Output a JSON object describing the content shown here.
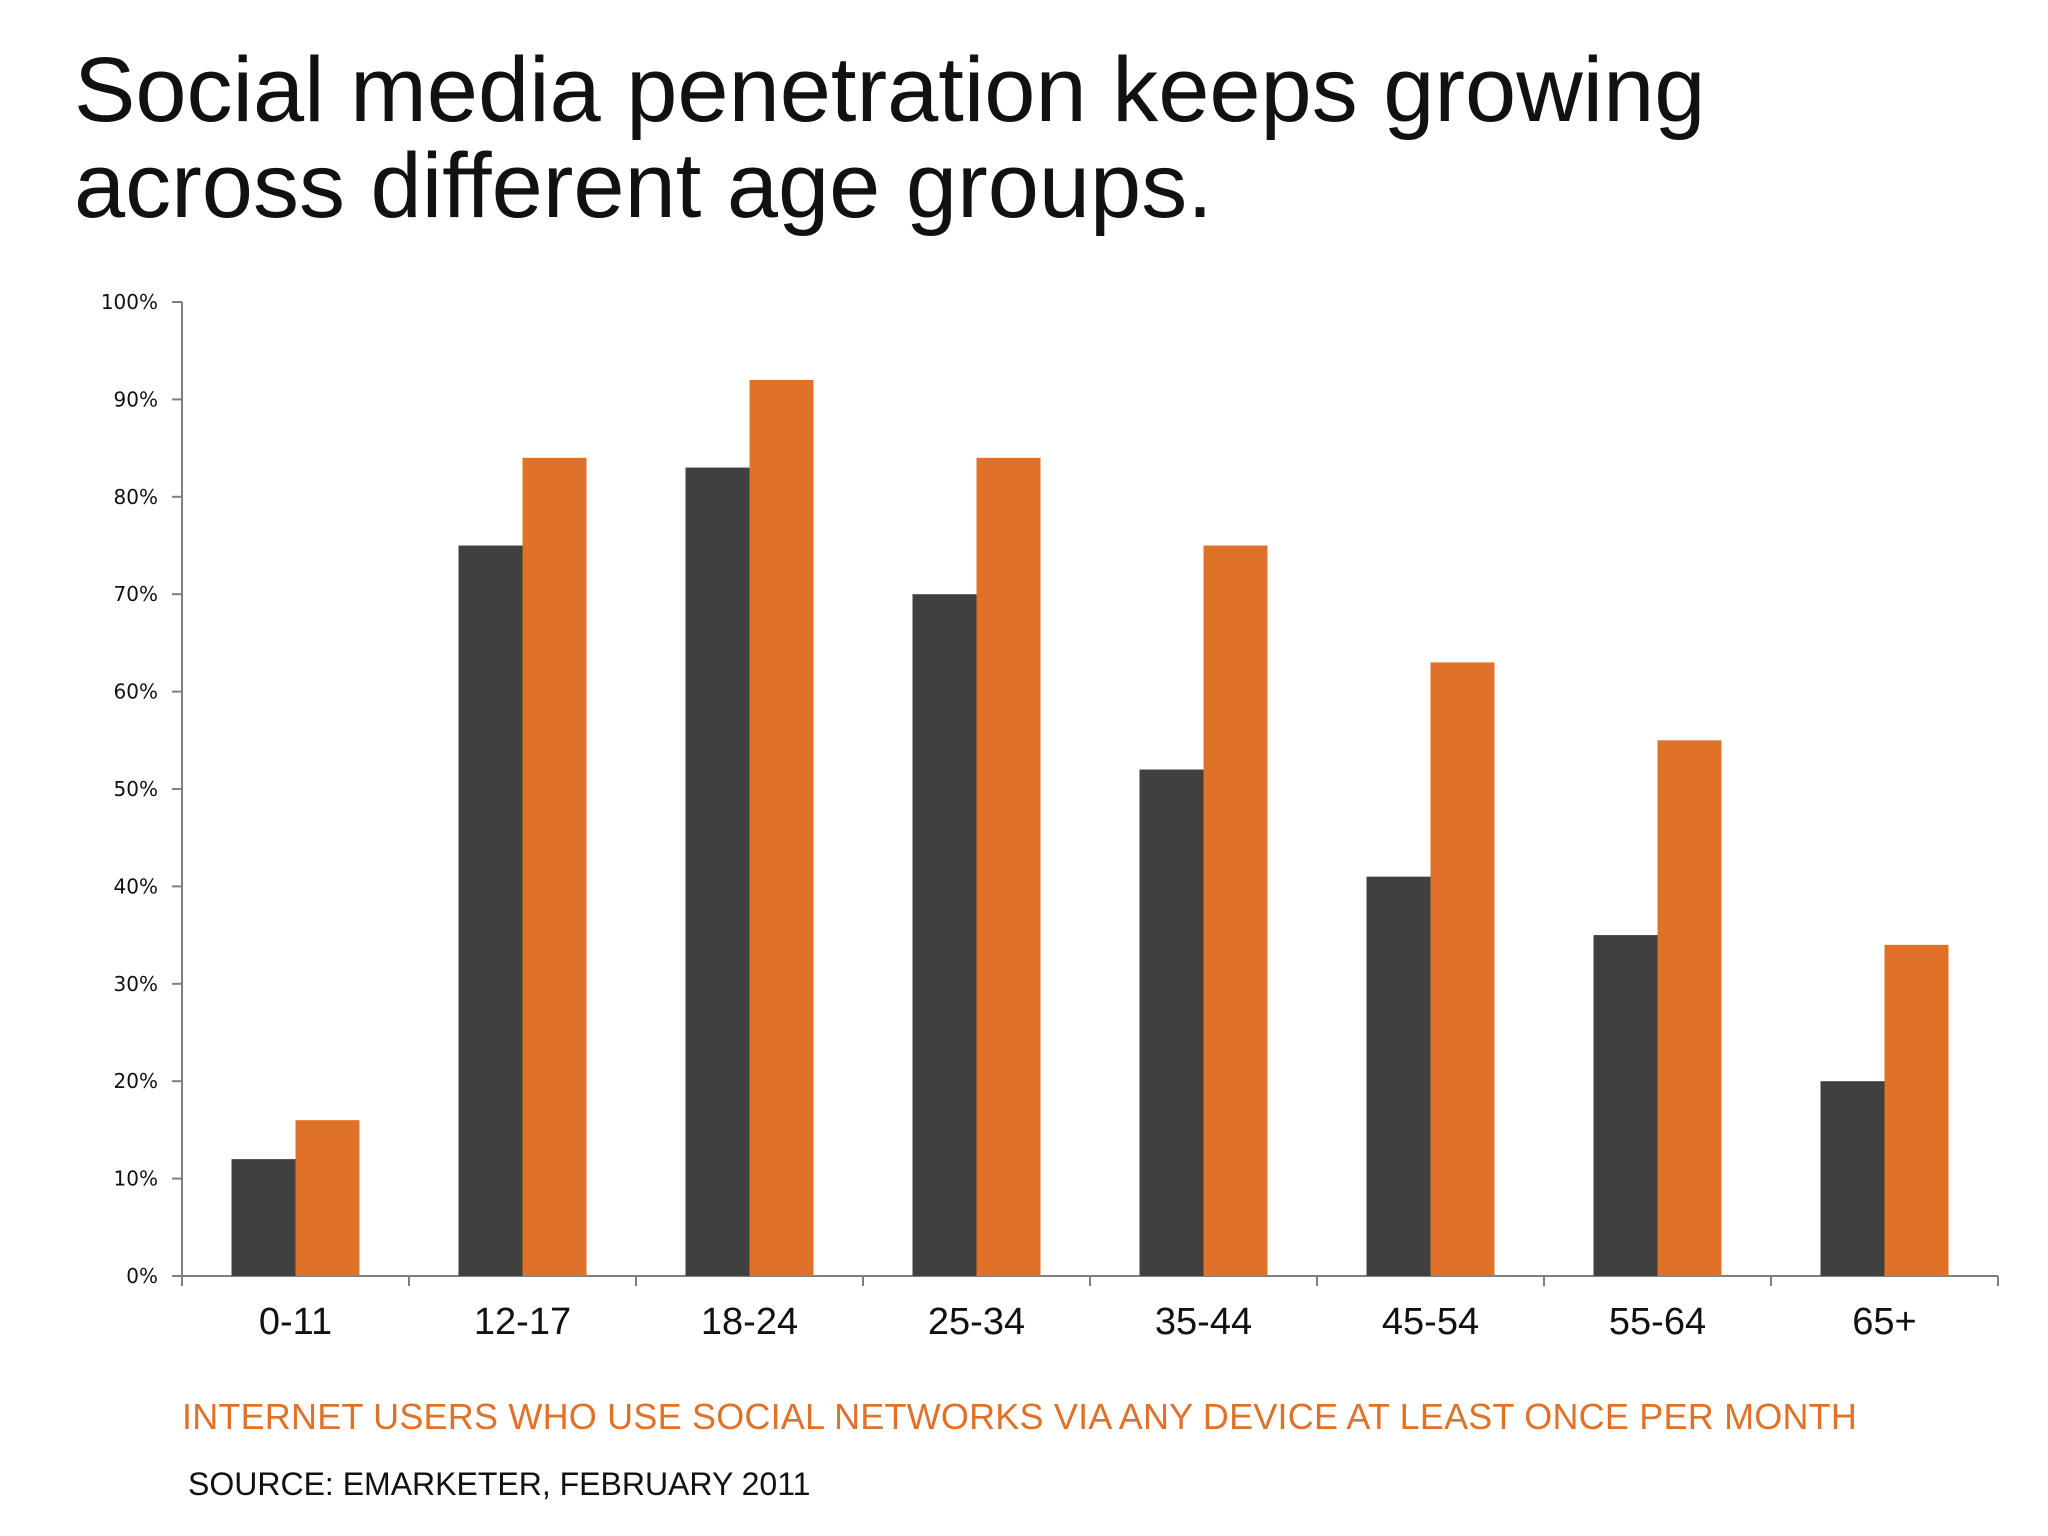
{
  "title": {
    "line1": "Social media penetration keeps growing",
    "line2": "across different age groups."
  },
  "caption": "INTERNET USERS WHO USE SOCIAL NETWORKS VIA ANY DEVICE AT LEAST ONCE PER MONTH",
  "source": "SOURCE: EMARKETER, FEBRUARY 2011",
  "colors": {
    "series1": "#404040",
    "series2": "#e07128",
    "axis": "#7f7f7f",
    "text": "#111111"
  },
  "chart_data": {
    "type": "bar",
    "categories": [
      "0-11",
      "12-17",
      "18-24",
      "25-34",
      "35-44",
      "45-54",
      "55-64",
      "65+"
    ],
    "series": [
      {
        "values": [
          12,
          75,
          83,
          70,
          52,
          41,
          35,
          20
        ]
      },
      {
        "values": [
          16,
          84,
          92,
          84,
          75,
          63,
          55,
          34
        ]
      }
    ],
    "yticks": [
      "0%",
      "10%",
      "20%",
      "30%",
      "40%",
      "50%",
      "60%",
      "70%",
      "80%",
      "90%",
      "100%"
    ],
    "ylim": [
      0,
      100
    ],
    "grid": false,
    "legend": "none"
  }
}
